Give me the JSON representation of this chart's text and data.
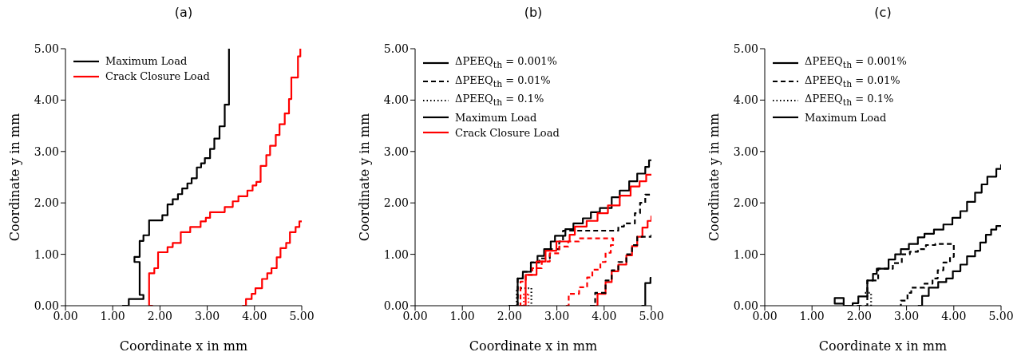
{
  "chart_data": [
    {
      "type": "step",
      "title": "(a)",
      "xlabel": "Coordinate x in mm",
      "ylabel": "Coordinate y in mm",
      "xlim": [
        0,
        5
      ],
      "ylim": [
        0,
        5
      ],
      "xticks": [
        {
          "value": 0,
          "label": "0.00"
        },
        {
          "value": 1,
          "label": "1.00"
        },
        {
          "value": 2,
          "label": "2.00"
        },
        {
          "value": 3,
          "label": "3.00"
        },
        {
          "value": 4,
          "label": "4.00"
        },
        {
          "value": 5,
          "label": "5.00"
        }
      ],
      "yticks": [
        {
          "value": 0,
          "label": "0.00"
        },
        {
          "value": 1,
          "label": "1.00"
        },
        {
          "value": 2,
          "label": "2.00"
        },
        {
          "value": 3,
          "label": "3.00"
        },
        {
          "value": 4,
          "label": "4.00"
        },
        {
          "value": 5,
          "label": "5.00"
        }
      ],
      "grid": false,
      "legend": "top left",
      "series": [
        {
          "name": "Maximum Load",
          "color": "#000000",
          "line_style": "solid",
          "x": [
            1.2,
            1.34,
            1.65,
            1.57,
            1.46,
            1.57,
            1.65,
            1.77,
            1.85,
            2.05,
            2.16,
            2.27,
            2.38,
            2.47,
            2.58,
            2.67,
            2.78,
            2.87,
            2.95,
            3.06,
            3.15,
            3.26,
            3.37,
            3.46,
            3.46
          ],
          "values": [
            0,
            0.13,
            0.21,
            0.85,
            0.95,
            1.26,
            1.37,
            1.66,
            1.66,
            1.76,
            1.97,
            2.07,
            2.17,
            2.28,
            2.38,
            2.48,
            2.69,
            2.77,
            2.87,
            3.05,
            3.25,
            3.49,
            3.91,
            3.91,
            5
          ]
        },
        {
          "name": "Crack Closure Load",
          "color": "#ff0000",
          "line_style": "solid",
          "x": [
            1.85,
            1.77,
            1.88,
            1.96,
            2.16,
            2.27,
            2.44,
            2.64,
            2.86,
            2.97,
            3.06,
            3.37,
            3.54,
            3.66,
            3.85,
            3.96,
            4.04,
            4.13,
            4.25,
            4.33,
            4.45,
            4.53,
            4.64,
            4.73,
            4.78,
            4.92,
            4.97
          ],
          "values": [
            0,
            0.63,
            0.73,
            1.04,
            1.14,
            1.22,
            1.43,
            1.53,
            1.64,
            1.71,
            1.82,
            1.92,
            2.03,
            2.13,
            2.24,
            2.34,
            2.41,
            2.72,
            2.93,
            3.11,
            3.32,
            3.53,
            3.74,
            4.02,
            4.44,
            4.85,
            5
          ]
        },
        {
          "color": "#ff0000",
          "line_style": "solid",
          "x": [
            3.74,
            3.82,
            3.94,
            4.02,
            4.16,
            4.27,
            4.36,
            4.47,
            4.55,
            4.67,
            4.75,
            4.87,
            4.95,
            5.0
          ],
          "values": [
            0,
            0.13,
            0.23,
            0.34,
            0.52,
            0.63,
            0.73,
            0.94,
            1.12,
            1.22,
            1.43,
            1.53,
            1.64,
            1.64
          ]
        }
      ]
    },
    {
      "type": "step",
      "title": "(b)",
      "xlabel": "Coordinate x in mm",
      "ylabel": "Coordinate y in mm",
      "xlim": [
        0,
        5
      ],
      "ylim": [
        0,
        5
      ],
      "xticks": [
        {
          "value": 0,
          "label": "0.00"
        },
        {
          "value": 1,
          "label": "1.00"
        },
        {
          "value": 2,
          "label": "2.00"
        },
        {
          "value": 3,
          "label": "3.00"
        },
        {
          "value": 4,
          "label": "4.00"
        },
        {
          "value": 5,
          "label": "5.00"
        }
      ],
      "yticks": [
        {
          "value": 0,
          "label": "0.00"
        },
        {
          "value": 1,
          "label": "1.00"
        },
        {
          "value": 2,
          "label": "2.00"
        },
        {
          "value": 3,
          "label": "3.00"
        },
        {
          "value": 4,
          "label": "4.00"
        },
        {
          "value": 5,
          "label": "5.00"
        }
      ],
      "grid": false,
      "legend": "top left",
      "series": [
        {
          "name": "ΔPEEQ$_{th}$ = 0.001%",
          "color": "#000000",
          "line_style": "solid",
          "x": [
            4.79,
            4.87,
            4.98,
            5.0
          ],
          "values": [
            0,
            0.44,
            0.54,
            0.54
          ]
        },
        {
          "name": "ΔPEEQ$_{th}$ = 0.01%",
          "color": "#000000",
          "line_style": "dashed",
          "x": [
            1.98,
            2.17,
            2.28,
            2.45,
            2.63,
            2.85,
            3.05,
            3.13,
            4.3,
            4.42,
            4.65,
            4.76,
            4.87,
            4.98
          ],
          "values": [
            0,
            0.53,
            0.66,
            0.84,
            0.92,
            1.1,
            1.25,
            1.46,
            1.54,
            1.6,
            1.8,
            2.0,
            2.16,
            2.16
          ]
        },
        {
          "name": "ΔPEEQ$_{th}$ = 0.1%",
          "color": "#000000",
          "line_style": "dotted",
          "x": [
            2.15,
            2.15,
            2.46,
            2.46
          ],
          "values": [
            0,
            0.34,
            0.34,
            0
          ]
        },
        {
          "name": "Maximum Load",
          "color": "#000000",
          "line_style": "solid",
          "x": [
            1.98,
            2.17,
            2.28,
            2.45,
            2.59,
            2.73,
            2.87,
            2.96,
            3.18,
            3.35,
            3.55,
            3.72,
            3.91,
            4.16,
            4.33,
            4.53,
            4.7,
            4.87,
            4.95,
            5.0
          ],
          "values": [
            0,
            0.53,
            0.66,
            0.84,
            0.97,
            1.1,
            1.25,
            1.36,
            1.49,
            1.6,
            1.7,
            1.82,
            1.9,
            2.11,
            2.24,
            2.42,
            2.57,
            2.7,
            2.83,
            2.83
          ]
        },
        {
          "name": "Crack Closure Load",
          "color": "#ff0000",
          "line_style": "solid",
          "x": [
            2.2,
            2.34,
            2.57,
            2.76,
            2.99,
            3.27,
            3.38,
            3.63,
            3.86,
            4.08,
            4.33,
            4.56,
            4.75,
            4.89,
            5.0
          ],
          "values": [
            0,
            0.6,
            0.86,
            1.07,
            1.25,
            1.38,
            1.54,
            1.65,
            1.8,
            1.95,
            2.14,
            2.32,
            2.42,
            2.55,
            2.55
          ]
        },
        {
          "color": "#ff0000",
          "line_style": "solid",
          "x": [
            3.72,
            3.86,
            4.03,
            4.16,
            4.3,
            4.47,
            4.59,
            4.7,
            4.81,
            4.92,
            5.0
          ],
          "values": [
            0,
            0.23,
            0.46,
            0.67,
            0.8,
            0.98,
            1.16,
            1.34,
            1.52,
            1.65,
            1.75
          ]
        },
        {
          "color": "#000000",
          "line_style": "dashed",
          "x": [
            3.7,
            3.81,
            4.03,
            4.16,
            4.3,
            4.47,
            4.59,
            4.7,
            4.81,
            5.0
          ],
          "values": [
            0,
            0.25,
            0.49,
            0.69,
            0.85,
            1.0,
            1.18,
            1.34,
            1.34,
            1.39
          ]
        },
        {
          "color": "#ff0000",
          "line_style": "dashed",
          "x": [
            3.19,
            3.25,
            3.47,
            3.64,
            3.75,
            3.92,
            4.03,
            4.14,
            4.19,
            3.47,
            3.24,
            3.05,
            2.85,
            2.68,
            2.48,
            2.34,
            2.23
          ],
          "values": [
            0,
            0.23,
            0.36,
            0.55,
            0.7,
            0.85,
            1.03,
            1.18,
            1.31,
            1.25,
            1.15,
            1.02,
            0.86,
            0.73,
            0.6,
            0.47,
            0
          ]
        },
        {
          "color": "#ff0000",
          "line_style": "dotted",
          "x": [
            2.3,
            2.3,
            2.4,
            2.4
          ],
          "values": [
            0,
            0.22,
            0.22,
            0
          ]
        }
      ]
    },
    {
      "type": "step",
      "title": "(c)",
      "xlabel": "Coordinate x in mm",
      "ylabel": "Coordinate y in mm",
      "xlim": [
        0,
        5
      ],
      "ylim": [
        0,
        5
      ],
      "xticks": [
        {
          "value": 0,
          "label": "0.00"
        },
        {
          "value": 1,
          "label": "1.00"
        },
        {
          "value": 2,
          "label": "2.00"
        },
        {
          "value": 3,
          "label": "3.00"
        },
        {
          "value": 4,
          "label": "4.00"
        },
        {
          "value": 5,
          "label": "5.00"
        }
      ],
      "yticks": [
        {
          "value": 0,
          "label": "0.00"
        },
        {
          "value": 1,
          "label": "1.00"
        },
        {
          "value": 2,
          "label": "2.00"
        },
        {
          "value": 3,
          "label": "3.00"
        },
        {
          "value": 4,
          "label": "4.00"
        },
        {
          "value": 5,
          "label": "5.00"
        }
      ],
      "grid": false,
      "legend": "top left",
      "series": [
        {
          "name": "ΔPEEQ$_{th}$ = 0.001%",
          "color": "#000000",
          "line_style": "solid",
          "x": [
            3.24,
            3.33,
            3.47,
            3.67,
            3.84,
            3.98,
            4.14,
            4.28,
            4.45,
            4.56,
            4.68,
            4.79,
            4.9,
            5.0
          ],
          "values": [
            0,
            0.19,
            0.35,
            0.46,
            0.53,
            0.67,
            0.8,
            0.96,
            1.07,
            1.23,
            1.38,
            1.48,
            1.55,
            1.55
          ]
        },
        {
          "name": "ΔPEEQ$_{th}$ = 0.01%",
          "color": "#000000",
          "line_style": "dashed",
          "x": [
            1.95,
            2.17,
            2.4,
            2.71,
            2.9,
            3.07,
            3.24,
            3.41,
            3.61,
            4.0,
            4.0,
            3.92,
            3.78,
            3.66,
            3.55,
            3.38,
            3.1,
            3.02,
            2.88
          ],
          "values": [
            0,
            0.49,
            0.72,
            0.83,
            1.0,
            1.05,
            1.1,
            1.18,
            1.2,
            1.2,
            0.95,
            0.84,
            0.69,
            0.53,
            0.43,
            0.35,
            0.25,
            0.1,
            0
          ]
        },
        {
          "name": "ΔPEEQ$_{th}$ = 0.1%",
          "color": "#000000",
          "line_style": "dotted",
          "x": [
            2.12,
            2.25,
            2.25
          ],
          "values": [
            0.25,
            0.25,
            0
          ]
        },
        {
          "name": "Maximum Load",
          "color": "#000000",
          "line_style": "solid",
          "x": [
            1.67,
            1.48,
            1.48,
            1.67,
            1.86,
            1.98,
            2.17,
            2.29,
            2.37,
            2.62,
            2.76,
            2.88,
            3.05,
            3.24,
            3.38,
            3.58,
            3.78,
            3.97,
            4.14,
            4.28,
            4.45,
            4.59,
            4.71,
            4.9,
            5.0
          ],
          "values": [
            0.04,
            0.04,
            0.15,
            0,
            0.05,
            0.18,
            0.49,
            0.62,
            0.72,
            0.9,
            1.0,
            1.1,
            1.2,
            1.33,
            1.4,
            1.48,
            1.58,
            1.71,
            1.84,
            2.02,
            2.2,
            2.36,
            2.51,
            2.66,
            2.75
          ]
        }
      ]
    }
  ]
}
